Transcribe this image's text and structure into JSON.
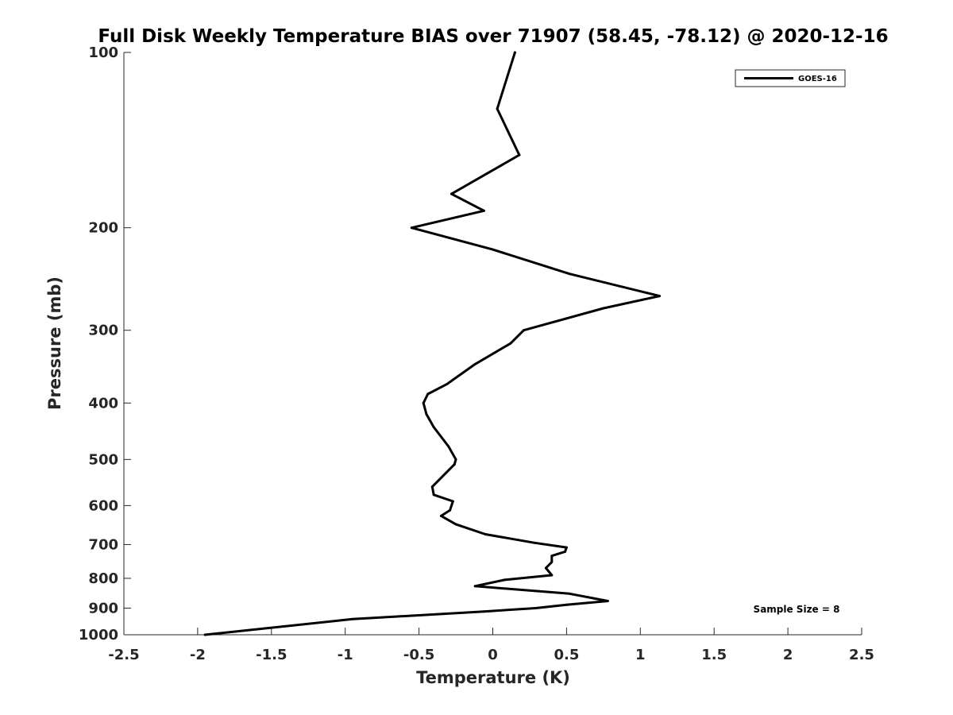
{
  "chart_data": {
    "type": "line",
    "title": "Full Disk Weekly Temperature BIAS over 71907 (58.45, -78.12) @ 2020-12-16",
    "xlabel": "Temperature (K)",
    "ylabel": "Pressure (mb)",
    "xlim": [
      -2.5,
      2.5
    ],
    "ylim": [
      1000,
      100
    ],
    "yscale": "log",
    "x_ticks": [
      -2.5,
      -2,
      -1.5,
      -1,
      -0.5,
      0,
      0.5,
      1,
      1.5,
      2,
      2.5
    ],
    "x_tick_labels": [
      "-2.5",
      "-2",
      "-1.5",
      "-1",
      "-0.5",
      "0",
      "0.5",
      "1",
      "1.5",
      "2",
      "2.5"
    ],
    "y_ticks": [
      100,
      200,
      300,
      400,
      500,
      600,
      700,
      800,
      900,
      1000
    ],
    "y_tick_labels": [
      "100",
      "200",
      "300",
      "400",
      "500",
      "600",
      "700",
      "800",
      "900",
      "1000"
    ],
    "grid": false,
    "legend_position": "top-right",
    "annotation": "Sample Size = 8",
    "series": [
      {
        "name": "GOES-16",
        "color": "#000000",
        "points": [
          {
            "x": 0.15,
            "y": 100
          },
          {
            "x": 0.03,
            "y": 125
          },
          {
            "x": 0.18,
            "y": 150
          },
          {
            "x": -0.28,
            "y": 175
          },
          {
            "x": -0.06,
            "y": 187
          },
          {
            "x": -0.55,
            "y": 200
          },
          {
            "x": 0.0,
            "y": 218
          },
          {
            "x": 0.52,
            "y": 240
          },
          {
            "x": 1.13,
            "y": 262
          },
          {
            "x": 0.75,
            "y": 275
          },
          {
            "x": 0.21,
            "y": 300
          },
          {
            "x": 0.12,
            "y": 316
          },
          {
            "x": -0.12,
            "y": 343
          },
          {
            "x": -0.31,
            "y": 371
          },
          {
            "x": -0.44,
            "y": 386
          },
          {
            "x": -0.47,
            "y": 400
          },
          {
            "x": -0.45,
            "y": 418
          },
          {
            "x": -0.4,
            "y": 440
          },
          {
            "x": -0.3,
            "y": 475
          },
          {
            "x": -0.25,
            "y": 500
          },
          {
            "x": -0.26,
            "y": 510
          },
          {
            "x": -0.41,
            "y": 557
          },
          {
            "x": -0.4,
            "y": 575
          },
          {
            "x": -0.27,
            "y": 590
          },
          {
            "x": -0.29,
            "y": 611
          },
          {
            "x": -0.35,
            "y": 625
          },
          {
            "x": -0.25,
            "y": 646
          },
          {
            "x": -0.05,
            "y": 672
          },
          {
            "x": 0.28,
            "y": 695
          },
          {
            "x": 0.5,
            "y": 708
          },
          {
            "x": 0.49,
            "y": 720
          },
          {
            "x": 0.4,
            "y": 732
          },
          {
            "x": 0.4,
            "y": 750
          },
          {
            "x": 0.36,
            "y": 768
          },
          {
            "x": 0.4,
            "y": 790
          },
          {
            "x": 0.08,
            "y": 805
          },
          {
            "x": -0.12,
            "y": 825
          },
          {
            "x": 0.52,
            "y": 850
          },
          {
            "x": 0.78,
            "y": 875
          },
          {
            "x": 0.5,
            "y": 888
          },
          {
            "x": 0.29,
            "y": 900
          },
          {
            "x": -0.06,
            "y": 912
          },
          {
            "x": -0.95,
            "y": 940
          },
          {
            "x": -1.95,
            "y": 1000
          }
        ]
      }
    ]
  }
}
